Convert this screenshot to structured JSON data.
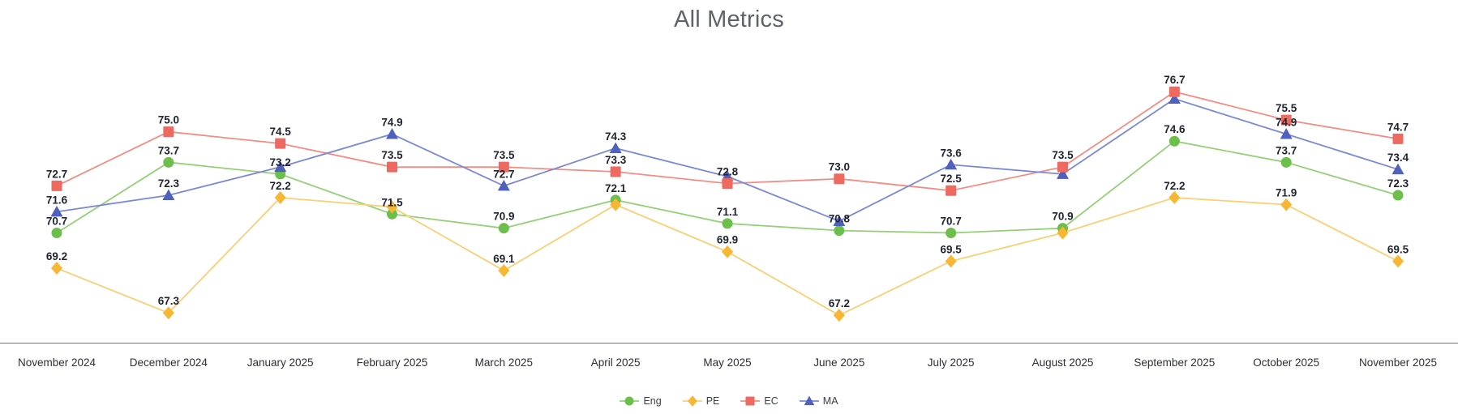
{
  "chart_data": {
    "type": "line",
    "title": "All Metrics",
    "xlabel": "",
    "ylabel": "",
    "grid": false,
    "y_axis_visible": false,
    "legend_position": "bottom",
    "ylim": [
      66.0,
      77.5
    ],
    "axis_color": "#757575",
    "label_color": "#1f2430",
    "categories": [
      "November 2024",
      "December 2024",
      "January 2025",
      "February 2025",
      "March 2025",
      "April 2025",
      "May 2025",
      "June 2025",
      "July 2025",
      "August 2025",
      "September 2025",
      "October 2025",
      "November 2025"
    ],
    "series": [
      {
        "name": "Eng",
        "marker": "circle",
        "color": "#6cbf4a",
        "line_color": "#93d077",
        "values": [
          70.7,
          73.7,
          73.2,
          71.5,
          70.9,
          72.1,
          71.1,
          70.8,
          70.7,
          70.9,
          74.6,
          73.7,
          72.3
        ],
        "hidden_labels": []
      },
      {
        "name": "PE",
        "marker": "diamond",
        "color": "#f7b733",
        "line_color": "#fbcf75",
        "values": [
          69.2,
          67.3,
          72.2,
          71.8,
          69.1,
          71.9,
          69.9,
          67.2,
          69.5,
          70.7,
          72.2,
          71.9,
          69.5
        ],
        "hidden_labels": [
          3,
          5,
          9
        ]
      },
      {
        "name": "EC",
        "marker": "square",
        "color": "#ee6a60",
        "line_color": "#f38d84",
        "values": [
          72.7,
          75.0,
          74.5,
          73.5,
          73.5,
          73.3,
          72.8,
          73.0,
          72.5,
          73.5,
          76.7,
          75.5,
          74.7
        ],
        "hidden_labels": []
      },
      {
        "name": "MA",
        "marker": "triangle",
        "color": "#4f60bd",
        "line_color": "#7b88d6",
        "values": [
          71.6,
          72.3,
          73.5,
          74.9,
          72.7,
          74.3,
          73.1,
          71.2,
          73.6,
          73.2,
          76.4,
          74.9,
          73.4
        ],
        "hidden_labels": [
          2,
          6,
          7,
          9,
          10
        ]
      }
    ]
  }
}
